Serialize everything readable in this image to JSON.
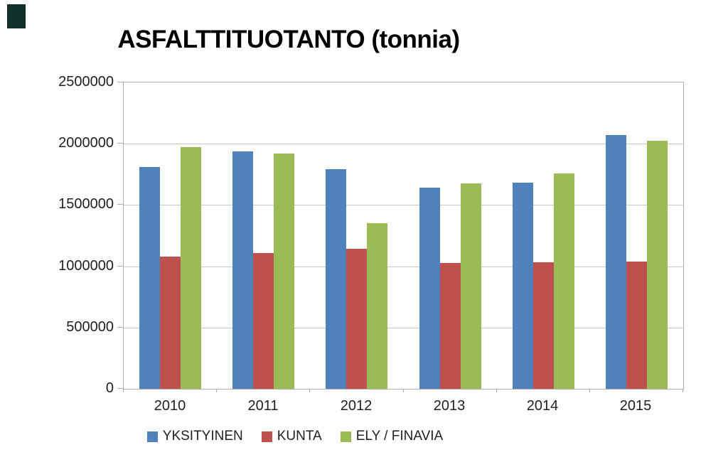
{
  "page": {
    "background": "#ffffff"
  },
  "corner_mark": {
    "color": "#13312b"
  },
  "chart_data": {
    "type": "bar",
    "title": "ASFALTTITUOTANTO (tonnia)",
    "categories": [
      "2010",
      "2011",
      "2012",
      "2013",
      "2014",
      "2015"
    ],
    "series": [
      {
        "name": "YKSITYINEN",
        "color": "#4f81bd",
        "values": [
          1810000,
          1935000,
          1790000,
          1640000,
          1680000,
          2070000
        ]
      },
      {
        "name": "KUNTA",
        "color": "#c0504d",
        "values": [
          1080000,
          1110000,
          1140000,
          1025000,
          1030000,
          1040000
        ]
      },
      {
        "name": "ELY / FINAVIA",
        "color": "#9bbb59",
        "values": [
          1970000,
          1920000,
          1350000,
          1675000,
          1760000,
          2025000
        ]
      }
    ],
    "xlabel": "",
    "ylabel": "",
    "ylim": [
      0,
      2500000
    ],
    "ytick_step": 500000,
    "yticks": [
      "0",
      "500000",
      "1000000",
      "1500000",
      "2000000",
      "2500000"
    ],
    "grid": "horizontal",
    "legend_position": "bottom"
  }
}
